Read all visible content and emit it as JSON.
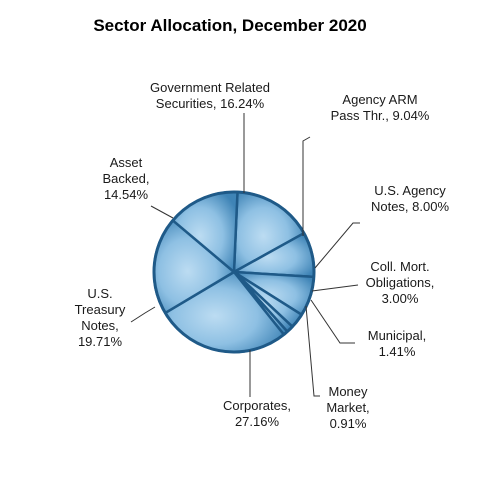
{
  "chart_data": {
    "type": "pie",
    "title": "Sector Allocation, December 2020",
    "unit": "%",
    "slices": [
      {
        "label_lines": [
          "Government Related",
          "Securities, 16.24%"
        ],
        "value": 16.24
      },
      {
        "label_lines": [
          "Agency ARM",
          "Pass Thr., 9.04%"
        ],
        "value": 9.04
      },
      {
        "label_lines": [
          "U.S. Agency",
          "Notes, 8.00%"
        ],
        "value": 8.0
      },
      {
        "label_lines": [
          "Coll. Mort.",
          "Obligations,",
          "3.00%"
        ],
        "value": 3.0
      },
      {
        "label_lines": [
          "Municipal,",
          "1.41%"
        ],
        "value": 1.41
      },
      {
        "label_lines": [
          "Money",
          "Market,",
          "0.91%"
        ],
        "value": 0.91
      },
      {
        "label_lines": [
          "Corporates,",
          "27.16%"
        ],
        "value": 27.16
      },
      {
        "label_lines": [
          "U.S.",
          "Treasury",
          "Notes,",
          "19.71%"
        ],
        "value": 19.71
      },
      {
        "label_lines": [
          "Asset",
          "Backed,",
          "14.54%"
        ],
        "value": 14.54
      }
    ],
    "colors": {
      "slice_fill_center": "#b4d7f0",
      "slice_fill_edge": "#3a7fb0",
      "rim": "#1f5a88",
      "divider": "#1f5a88"
    }
  }
}
